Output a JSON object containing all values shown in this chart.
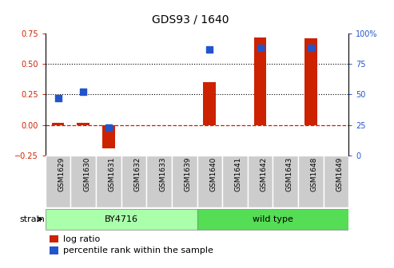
{
  "title": "GDS93 / 1640",
  "samples": [
    "GSM1629",
    "GSM1630",
    "GSM1631",
    "GSM1632",
    "GSM1633",
    "GSM1639",
    "GSM1640",
    "GSM1641",
    "GSM1642",
    "GSM1643",
    "GSM1648",
    "GSM1649"
  ],
  "log_ratio": [
    0.02,
    0.02,
    -0.19,
    0.0,
    0.0,
    0.0,
    0.35,
    0.0,
    0.72,
    0.0,
    0.71,
    0.0
  ],
  "percentile_left": [
    0.22,
    0.27,
    -0.02,
    null,
    null,
    null,
    0.62,
    null,
    0.63,
    null,
    0.63,
    null
  ],
  "strain_groups": [
    {
      "label": "BY4716",
      "start": 0,
      "end": 5,
      "color": "#aaffaa"
    },
    {
      "label": "wild type",
      "start": 6,
      "end": 11,
      "color": "#55dd55"
    }
  ],
  "ylim_left": [
    -0.25,
    0.75
  ],
  "ylim_right": [
    0,
    100
  ],
  "yticks_left": [
    -0.25,
    0.0,
    0.25,
    0.5,
    0.75
  ],
  "yticks_right": [
    0,
    25,
    50,
    75,
    100
  ],
  "bar_color": "#cc2200",
  "dot_color": "#2255cc",
  "hline_y": 0.0,
  "dotted_lines": [
    0.25,
    0.5
  ],
  "plot_bg_color": "#ffffff",
  "label_bg_color": "#cccccc",
  "bar_width": 0.5,
  "dot_size": 30,
  "title_fontsize": 10,
  "tick_fontsize": 7,
  "label_fontsize": 6.5,
  "strain_fontsize": 8,
  "legend_fontsize": 8
}
